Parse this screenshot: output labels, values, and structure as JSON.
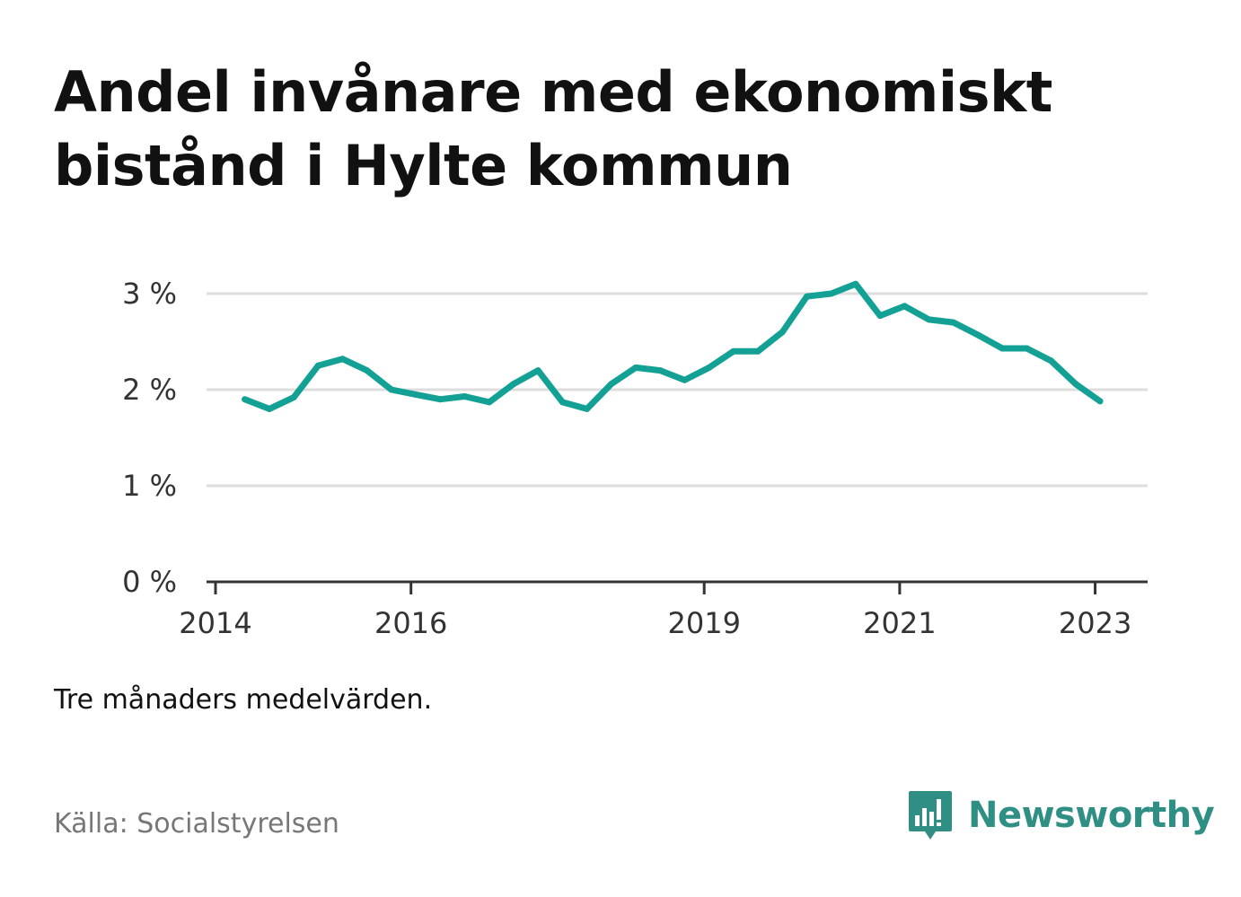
{
  "title": "Andel invånare med ekonomiskt bistånd i Hylte kommun",
  "note": "Tre månaders medelvärden.",
  "source": "Källa: Socialstyrelsen",
  "brand": {
    "name": "Newsworthy",
    "logo_icon": "bar-chart-speech-bubble-icon",
    "color": "#2f8f85"
  },
  "colors": {
    "line": "#14a195",
    "grid": "#dddddd",
    "axis": "#333333",
    "tick_text": "#333333"
  },
  "chart_data": {
    "type": "line",
    "title": "Andel invånare med ekonomiskt bistånd i Hylte kommun",
    "xlabel": "",
    "ylabel": "",
    "ylim": [
      0,
      3
    ],
    "xlim": [
      2014.0,
      2023.5
    ],
    "y_ticks": [
      0,
      1,
      2,
      3
    ],
    "y_tick_labels": [
      "0 %",
      "1 %",
      "2 %",
      "3 %"
    ],
    "x_ticks": [
      2014,
      2016,
      2019,
      2021,
      2023
    ],
    "x_tick_labels": [
      "2014",
      "2016",
      "2019",
      "2021",
      "2023"
    ],
    "grid": true,
    "series": [
      {
        "x": [
          2014.3,
          2014.55,
          2014.8,
          2015.05,
          2015.3,
          2015.55,
          2015.8,
          2016.05,
          2016.3,
          2016.55,
          2016.8,
          2017.05,
          2017.3,
          2017.55,
          2017.8,
          2018.05,
          2018.3,
          2018.55,
          2018.8,
          2019.05,
          2019.3,
          2019.55,
          2019.8,
          2020.05,
          2020.3,
          2020.55,
          2020.8,
          2021.05,
          2021.3,
          2021.55,
          2021.8,
          2022.05,
          2022.3,
          2022.55,
          2022.8,
          2023.05
        ],
        "values": [
          1.9,
          1.8,
          1.92,
          2.25,
          2.32,
          2.2,
          2.0,
          1.95,
          1.9,
          1.93,
          1.87,
          2.06,
          2.2,
          1.87,
          1.8,
          2.06,
          2.23,
          2.2,
          2.1,
          2.23,
          2.4,
          2.4,
          2.6,
          2.97,
          3.0,
          3.1,
          2.77,
          2.87,
          2.73,
          2.7,
          2.57,
          2.43,
          2.43,
          2.3,
          2.06,
          1.88
        ]
      }
    ]
  }
}
